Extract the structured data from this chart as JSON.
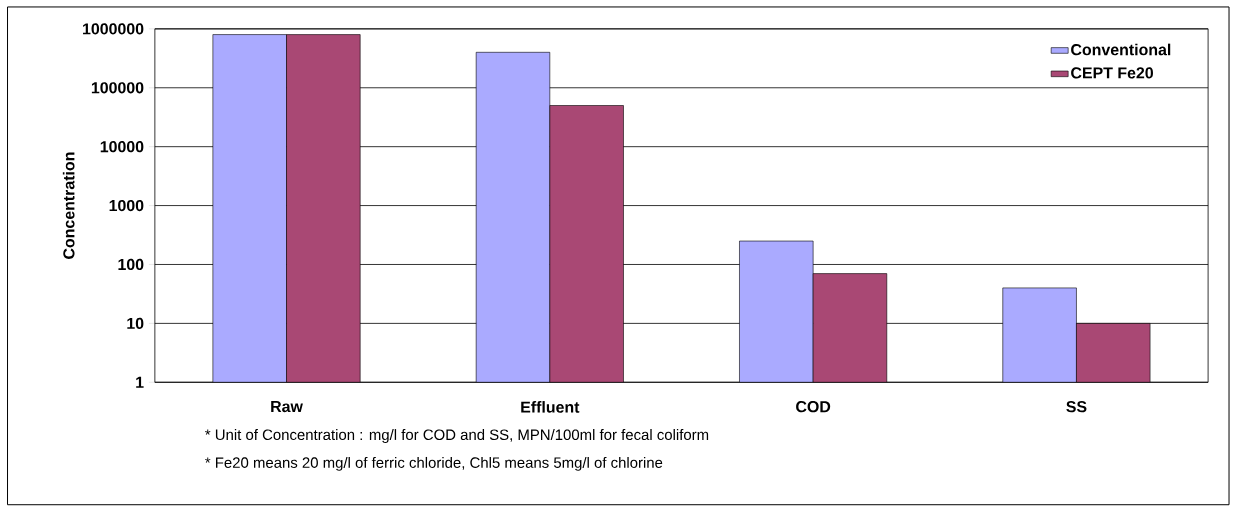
{
  "chart_data": {
    "type": "bar",
    "ylabel": "Concentration",
    "categories": [
      "Raw",
      "Effluent",
      "COD",
      "SS"
    ],
    "series": [
      {
        "name": "Conventional",
        "color": "#aaaaff",
        "values": [
          800000,
          400000,
          250,
          40
        ]
      },
      {
        "name": "CEPT Fe20",
        "color": "#a94874",
        "values": [
          800000,
          50000,
          70,
          10
        ]
      }
    ],
    "log": "y",
    "ylim": [
      1,
      1000000
    ],
    "yticks": [
      1,
      10,
      100,
      1000,
      10000,
      100000,
      1000000
    ],
    "grid": "y",
    "legend": "top right",
    "annotations": [
      "* Unit of Concentration : mg/l for COD and SS, MPN/100ml for fecal coliform",
      "* Fe20 means 20 mg/l of ferric chloride, Chl5 means 5mg/l of chlorine"
    ]
  }
}
